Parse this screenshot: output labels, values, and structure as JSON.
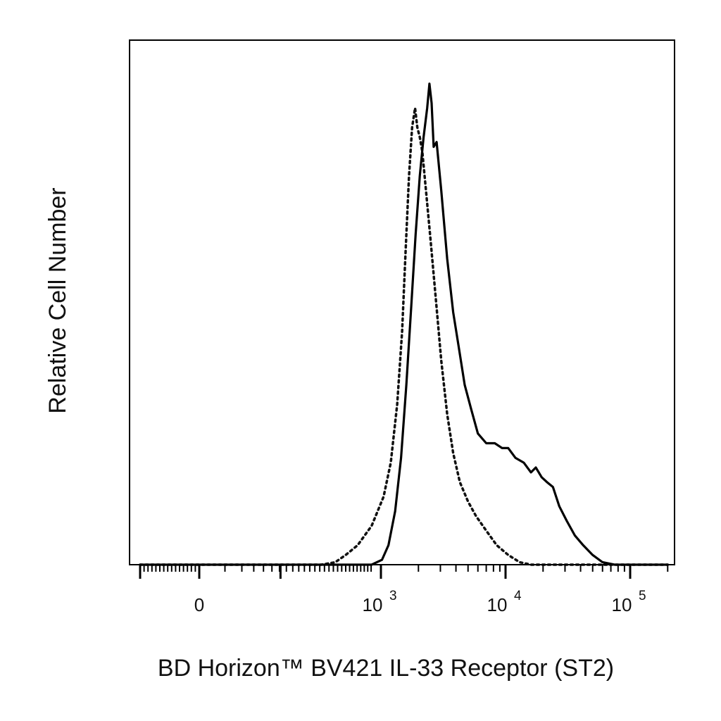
{
  "chart_data": {
    "type": "line",
    "xlabel": "BD Horizon™ BV421 IL-33 Receptor (ST2)",
    "ylabel": "Relative Cell Number",
    "xscale": "biexponential",
    "xlim": [
      -300,
      200000
    ],
    "ylim": [
      0,
      1
    ],
    "grid": false,
    "legend": "none",
    "x_ticks": [
      {
        "value": 0,
        "base": "0",
        "exp": ""
      },
      {
        "value": 1000,
        "base": "10",
        "exp": "3"
      },
      {
        "value": 10000,
        "base": "10",
        "exp": "4"
      },
      {
        "value": 100000,
        "base": "10",
        "exp": "5"
      }
    ],
    "series": [
      {
        "style": "dotted",
        "color": "#111111",
        "x": [
          -300,
          450,
          560,
          650,
          760,
          900,
          1050,
          1200,
          1350,
          1480,
          1580,
          1680,
          1780,
          1880,
          1960,
          2050,
          2150,
          2300,
          2500,
          2750,
          3050,
          3400,
          3800,
          4300,
          5000,
          5800,
          7000,
          8500,
          10500,
          13000,
          16000,
          20000,
          200000
        ],
        "y": [
          0,
          0,
          0.005,
          0.02,
          0.04,
          0.08,
          0.14,
          0.21,
          0.33,
          0.48,
          0.65,
          0.8,
          0.9,
          0.94,
          0.9,
          0.88,
          0.85,
          0.77,
          0.67,
          0.55,
          0.42,
          0.31,
          0.23,
          0.17,
          0.13,
          0.1,
          0.07,
          0.04,
          0.02,
          0.005,
          0,
          0,
          0
        ]
      },
      {
        "style": "solid",
        "color": "#000000",
        "x": [
          -300,
          900,
          1020,
          1150,
          1300,
          1450,
          1600,
          1750,
          1900,
          2050,
          2200,
          2350,
          2450,
          2550,
          2650,
          2800,
          3050,
          3400,
          3800,
          4200,
          4700,
          5300,
          6000,
          7000,
          8200,
          9400,
          10500,
          12000,
          14000,
          16000,
          17500,
          19500,
          21500,
          24000,
          27000,
          31000,
          36000,
          42000,
          50000,
          60000,
          75000,
          200000
        ],
        "y": [
          0,
          0,
          0.01,
          0.04,
          0.11,
          0.22,
          0.37,
          0.53,
          0.68,
          0.8,
          0.88,
          0.94,
          0.99,
          0.95,
          0.86,
          0.87,
          0.77,
          0.63,
          0.52,
          0.45,
          0.37,
          0.32,
          0.27,
          0.25,
          0.25,
          0.24,
          0.24,
          0.22,
          0.21,
          0.19,
          0.2,
          0.18,
          0.17,
          0.16,
          0.12,
          0.09,
          0.06,
          0.04,
          0.02,
          0.005,
          0,
          0
        ]
      }
    ]
  }
}
